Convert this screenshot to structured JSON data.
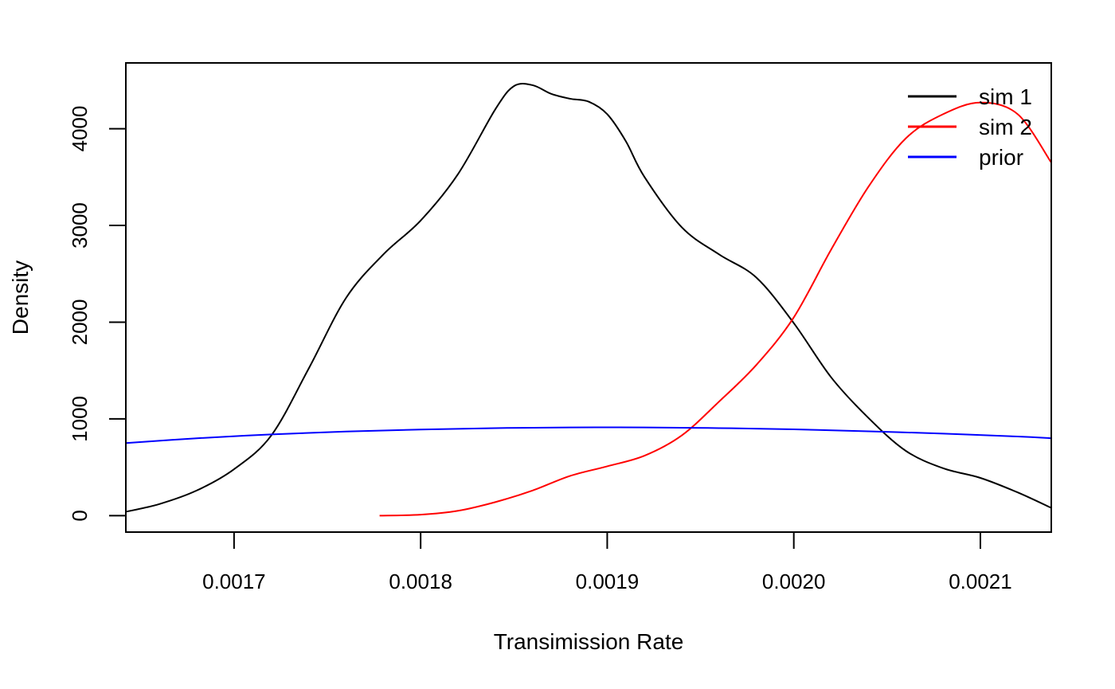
{
  "chart_data": {
    "type": "line",
    "title": "",
    "xlabel": "Transimission Rate",
    "ylabel": "Density",
    "xlim": [
      0.001642,
      0.002138
    ],
    "ylim": [
      -170,
      4680
    ],
    "x_ticks": [
      {
        "value": 0.0017,
        "label": "0.0017"
      },
      {
        "value": 0.0018,
        "label": "0.0018"
      },
      {
        "value": 0.0019,
        "label": "0.0019"
      },
      {
        "value": 0.002,
        "label": "0.0020"
      },
      {
        "value": 0.0021,
        "label": "0.0021"
      }
    ],
    "y_ticks": [
      {
        "value": 0,
        "label": "0"
      },
      {
        "value": 1000,
        "label": "1000"
      },
      {
        "value": 2000,
        "label": "2000"
      },
      {
        "value": 3000,
        "label": "3000"
      },
      {
        "value": 4000,
        "label": "4000"
      }
    ],
    "legend_position": "top-right",
    "grid": false,
    "series": [
      {
        "name": "sim 1",
        "color": "#000000",
        "x": [
          0.001642,
          0.00166,
          0.00168,
          0.0017,
          0.00172,
          0.00174,
          0.00176,
          0.00178,
          0.0018,
          0.00182,
          0.00184,
          0.00185,
          0.00186,
          0.00187,
          0.00188,
          0.00189,
          0.0019,
          0.00191,
          0.00192,
          0.00194,
          0.00196,
          0.00198,
          0.002,
          0.00202,
          0.00204,
          0.00206,
          0.00208,
          0.0021,
          0.00212,
          0.002138
        ],
        "y": [
          40,
          120,
          260,
          480,
          830,
          1520,
          2250,
          2700,
          3050,
          3530,
          4200,
          4440,
          4450,
          4360,
          4310,
          4280,
          4150,
          3870,
          3500,
          2980,
          2700,
          2460,
          1990,
          1430,
          1010,
          670,
          490,
          390,
          240,
          80
        ]
      },
      {
        "name": "sim 2",
        "color": "#ff0000",
        "x": [
          0.001778,
          0.0018,
          0.00182,
          0.00184,
          0.00186,
          0.00188,
          0.0019,
          0.00192,
          0.00194,
          0.00196,
          0.00198,
          0.002,
          0.00202,
          0.00204,
          0.00206,
          0.00208,
          0.0021,
          0.00212,
          0.002138
        ],
        "y": [
          0,
          10,
          50,
          140,
          260,
          410,
          510,
          620,
          830,
          1180,
          1560,
          2050,
          2750,
          3400,
          3900,
          4150,
          4270,
          4150,
          3650
        ]
      },
      {
        "name": "prior",
        "color": "#0000ff",
        "x": [
          0.001642,
          0.00168,
          0.00172,
          0.00176,
          0.0018,
          0.00184,
          0.00188,
          0.0019,
          0.00192,
          0.00196,
          0.002,
          0.00204,
          0.00208,
          0.00212,
          0.002138
        ],
        "y": [
          750,
          800,
          840,
          870,
          890,
          905,
          912,
          913,
          912,
          905,
          892,
          872,
          848,
          818,
          800
        ]
      }
    ]
  }
}
